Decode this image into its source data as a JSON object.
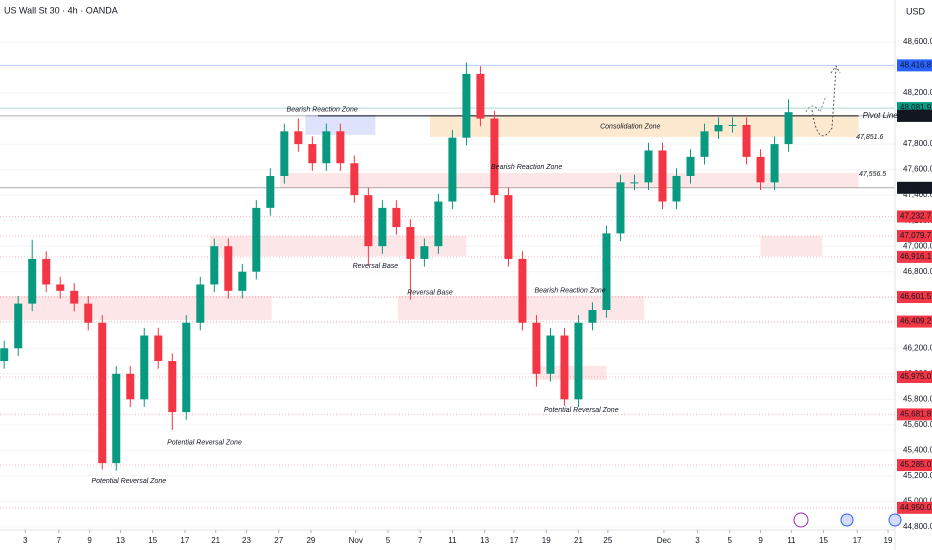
{
  "chart_data": {
    "type": "candlestick",
    "title": "US Wall St 30 · 4h · OANDA",
    "currency": "USD",
    "countdown": "53:47",
    "up_color": "#089981",
    "down_color": "#f23645",
    "xlim": [
      -0.3,
      63.6
    ],
    "ylim": [
      44776,
      48929
    ],
    "xticks": [
      {
        "value": 1.5,
        "label": "3"
      },
      {
        "value": 3.9,
        "label": "7"
      },
      {
        "value": 6.1,
        "label": "9"
      },
      {
        "value": 8.3,
        "label": "13"
      },
      {
        "value": 10.6,
        "label": "15"
      },
      {
        "value": 12.9,
        "label": "17"
      },
      {
        "value": 15.1,
        "label": "21"
      },
      {
        "value": 17.3,
        "label": "23"
      },
      {
        "value": 19.6,
        "label": "27"
      },
      {
        "value": 21.9,
        "label": "29"
      },
      {
        "value": 25.1,
        "label": "Nov"
      },
      {
        "value": 27.4,
        "label": "5"
      },
      {
        "value": 29.7,
        "label": "7"
      },
      {
        "value": 32,
        "label": "11"
      },
      {
        "value": 34.3,
        "label": "13"
      },
      {
        "value": 36.4,
        "label": "17"
      },
      {
        "value": 38.7,
        "label": "19"
      },
      {
        "value": 41,
        "label": "21"
      },
      {
        "value": 43.1,
        "label": "25"
      },
      {
        "value": 47.1,
        "label": "Dec"
      },
      {
        "value": 49.5,
        "label": "3"
      },
      {
        "value": 51.8,
        "label": "5"
      },
      {
        "value": 54,
        "label": "9"
      },
      {
        "value": 56.2,
        "label": "11"
      },
      {
        "value": 58.5,
        "label": "15"
      },
      {
        "value": 60.9,
        "label": "17"
      },
      {
        "value": 63.1,
        "label": "19"
      }
    ],
    "yticks": [
      {
        "value": 44800,
        "label": "44,800.0"
      },
      {
        "value": 45000,
        "label": "45,000.0"
      },
      {
        "value": 45200,
        "label": "45,200.0"
      },
      {
        "value": 45400,
        "label": "45,400.0"
      },
      {
        "value": 45600,
        "label": "45,600.0"
      },
      {
        "value": 45800,
        "label": "45,800.0"
      },
      {
        "value": 46000,
        "label": "46,000.0"
      },
      {
        "value": 46200,
        "label": "46,200.0"
      },
      {
        "value": 46400,
        "label": "46,400.0"
      },
      {
        "value": 46600,
        "label": "46,600.0"
      },
      {
        "value": 46800,
        "label": "46,800.0"
      },
      {
        "value": 47000,
        "label": "47,000.0"
      },
      {
        "value": 47200,
        "label": "47,200.0"
      },
      {
        "value": 47400,
        "label": "47,400.0"
      },
      {
        "value": 47600,
        "label": "47,600.0"
      },
      {
        "value": 47800,
        "label": "47,800.0"
      },
      {
        "value": 48000,
        "label": "48,000.0"
      },
      {
        "value": 48200,
        "label": "48,200.0"
      },
      {
        "value": 48400,
        "label": "48,400.0"
      },
      {
        "value": 48600,
        "label": "48,600.0"
      }
    ],
    "open": [
      46100,
      46200,
      46550,
      46900,
      46700,
      46650,
      46550,
      46400,
      45300,
      46000,
      45800,
      46300,
      46100,
      45700,
      46400,
      46700,
      47000,
      46650,
      46800,
      47300,
      47550,
      47900,
      47800,
      47650,
      47900,
      47650,
      47400,
      47000,
      47300,
      47150,
      46900,
      47000,
      47350,
      47850,
      48350,
      48000,
      47400,
      46900,
      46400,
      46000,
      46300,
      45800,
      46400,
      46500,
      47100,
      47500,
      47500,
      47750,
      47350,
      47550,
      47700,
      47900,
      47950,
      47950,
      47700,
      47500,
      47800
    ],
    "high": [
      46260,
      46610,
      47050,
      46960,
      46760,
      46710,
      46610,
      46460,
      46060,
      46060,
      46360,
      46360,
      46160,
      46460,
      46760,
      47060,
      47060,
      46860,
      47360,
      47610,
      47960,
      48000,
      47860,
      47960,
      47960,
      47710,
      47460,
      47360,
      47360,
      47210,
      47060,
      47410,
      47910,
      48440,
      48410,
      48060,
      47460,
      46960,
      46460,
      46360,
      46360,
      46460,
      46560,
      47160,
      47560,
      47560,
      47810,
      47810,
      47610,
      47760,
      47960,
      48010,
      48010,
      48010,
      47760,
      47860,
      48150
    ],
    "low": [
      46040,
      46140,
      46490,
      46640,
      46590,
      46490,
      46340,
      45250,
      45240,
      45740,
      45740,
      46040,
      45560,
      45640,
      46340,
      46640,
      46590,
      46590,
      46740,
      47240,
      47490,
      47740,
      47590,
      47590,
      47590,
      47340,
      46850,
      46940,
      47090,
      46580,
      46840,
      46940,
      47290,
      47790,
      47940,
      47340,
      46840,
      46340,
      45900,
      45940,
      45750,
      45740,
      46340,
      46440,
      47040,
      47440,
      47440,
      47290,
      47290,
      47490,
      47640,
      47840,
      47890,
      47640,
      47440,
      47440,
      47740
    ],
    "close": [
      46200,
      46550,
      46900,
      46700,
      46650,
      46550,
      46400,
      45300,
      46000,
      45800,
      46300,
      46100,
      45700,
      46400,
      46700,
      47000,
      46650,
      46800,
      47300,
      47550,
      47900,
      47800,
      47650,
      47900,
      47650,
      47400,
      47000,
      47300,
      47150,
      46900,
      47000,
      47350,
      47850,
      48350,
      48000,
      47400,
      46900,
      46400,
      46000,
      46300,
      45800,
      46400,
      46500,
      47100,
      47500,
      47500,
      47750,
      47350,
      47550,
      47700,
      47900,
      47950,
      47950,
      47700,
      47500,
      47800,
      48050
    ],
    "levels": [
      {
        "value": 48416.8,
        "label": "48,416.8",
        "color": "#2962ff"
      },
      {
        "value": 48081.9,
        "label": "48,081.9",
        "color": "#089981"
      },
      {
        "value": 48020.8,
        "label": "48,020.8",
        "color": "#131722"
      },
      {
        "value": 47457.4,
        "label": "47,457.4",
        "color": "#131722"
      },
      {
        "value": 47232.7,
        "label": "47,232.7",
        "color": "#f23645"
      },
      {
        "value": 47079.7,
        "label": "47,079.7",
        "color": "#f23645"
      },
      {
        "value": 46916.1,
        "label": "46,916.1",
        "color": "#f23645"
      },
      {
        "value": 46601.5,
        "label": "46,601.5",
        "color": "#f23645"
      },
      {
        "value": 46409.2,
        "label": "46,409.2",
        "color": "#f23645"
      },
      {
        "value": 45975.0,
        "label": "45,975.0",
        "color": "#f23645"
      },
      {
        "value": 45681.8,
        "label": "45,681.8",
        "color": "#f23645"
      },
      {
        "value": 45285.0,
        "label": "45,285.0",
        "color": "#f23645"
      },
      {
        "value": 44950.0,
        "label": "44,950.0",
        "color": "#f23645"
      }
    ],
    "zones": [
      {
        "x": [
          21.5,
          26.5
        ],
        "y": [
          47872,
          48028
        ],
        "color": "#d6dcfa"
      },
      {
        "x": [
          30.4,
          61
        ],
        "y": [
          47856,
          48028
        ],
        "color": "#fbe3c4"
      },
      {
        "x": [
          19.7,
          61
        ],
        "y": [
          47456,
          47574
        ],
        "color": "#fbe0e2"
      },
      {
        "x": [
          14.7,
          33
        ],
        "y": [
          46923,
          47080
        ],
        "color": "#fbe0e2"
      },
      {
        "x": [
          54,
          58.4
        ],
        "y": [
          46923,
          47080
        ],
        "color": "#fbe0e2"
      },
      {
        "x": [
          -0.3,
          19.1
        ],
        "y": [
          46422,
          46610
        ],
        "color": "#fbe0e2"
      },
      {
        "x": [
          28.1,
          45.7
        ],
        "y": [
          46422,
          46610
        ],
        "color": "#fbe0e2"
      },
      {
        "x": [
          37.9,
          43
        ],
        "y": [
          45952,
          46062
        ],
        "color": "#fbe0e2"
      }
    ],
    "pivot": {
      "label": "Pivot Line",
      "value": 48020.8,
      "x": [
        22.4,
        61
      ]
    },
    "annotations": [
      {
        "text": "Bearish Reaction Zone",
        "x": 22.7,
        "y": 48070
      },
      {
        "text": "Consolidation Zone",
        "x": 44.7,
        "y": 47937
      },
      {
        "text": "Bearish Reaction Zone",
        "x": 37.3,
        "y": 47620
      },
      {
        "text": "Reversal Base",
        "x": 26.5,
        "y": 46845
      },
      {
        "text": "Reversal Base",
        "x": 30.4,
        "y": 46635
      },
      {
        "text": "Bearish Reaction Zone",
        "x": 40.4,
        "y": 46650
      },
      {
        "text": "Potential Reversal Zone",
        "x": 41.2,
        "y": 45717
      },
      {
        "text": "Potential Reversal Zone",
        "x": 14.3,
        "y": 45460
      },
      {
        "text": "Potential Reversal Zone",
        "x": 8.9,
        "y": 45160
      },
      {
        "text": "47,851.6",
        "x": 61.8,
        "y": 47856
      },
      {
        "text": "47,556.5",
        "x": 62,
        "y": 47566
      }
    ]
  }
}
